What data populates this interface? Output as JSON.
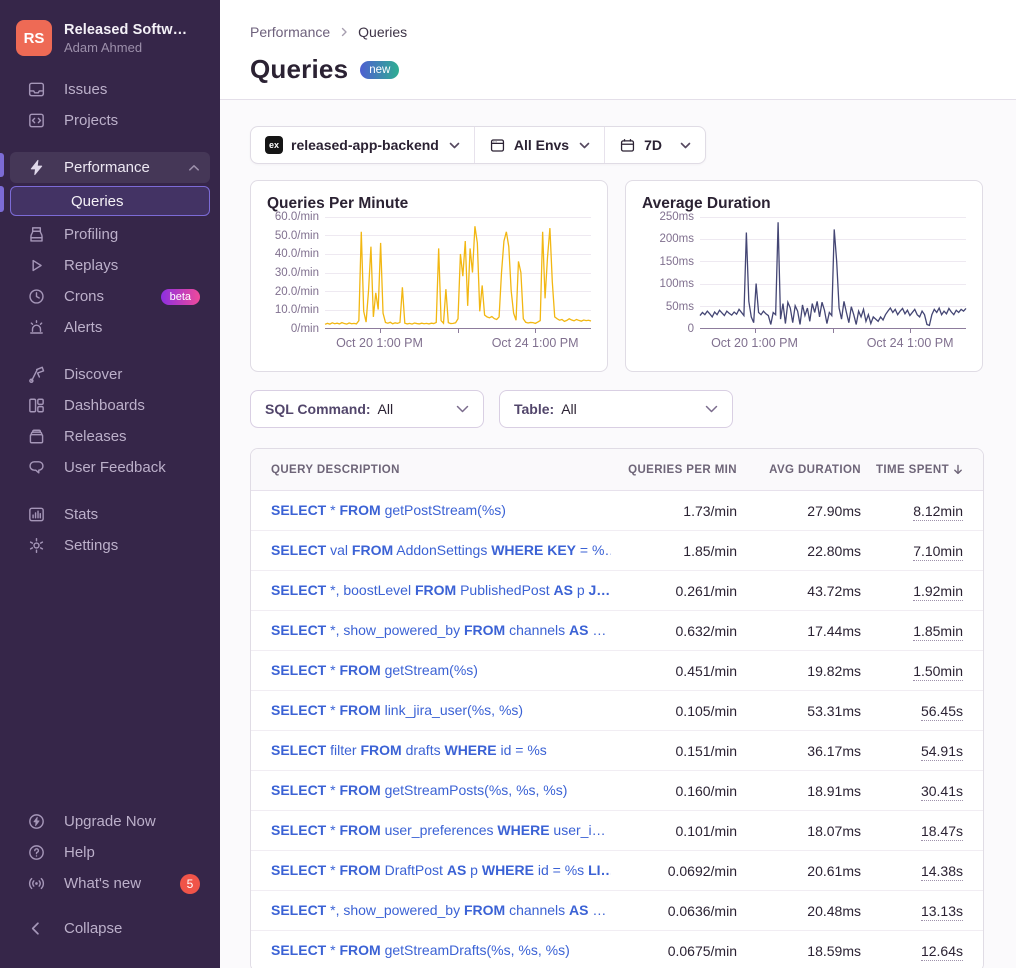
{
  "org": {
    "initials": "RS",
    "name": "Released Softw…",
    "user": "Adam Ahmed"
  },
  "sidebar": {
    "sections": [
      {
        "items": [
          {
            "label": "Issues",
            "icon": "issues"
          },
          {
            "label": "Projects",
            "icon": "projects"
          }
        ]
      },
      {
        "items": [
          {
            "label": "Performance",
            "icon": "performance",
            "state": "active",
            "chevron": "up"
          },
          {
            "label": "Queries",
            "state": "selected"
          },
          {
            "label": "Profiling",
            "icon": "profiling"
          },
          {
            "label": "Replays",
            "icon": "replays"
          },
          {
            "label": "Crons",
            "icon": "crons",
            "badge": "beta"
          },
          {
            "label": "Alerts",
            "icon": "alerts"
          }
        ]
      },
      {
        "items": [
          {
            "label": "Discover",
            "icon": "discover"
          },
          {
            "label": "Dashboards",
            "icon": "dashboards"
          },
          {
            "label": "Releases",
            "icon": "releases"
          },
          {
            "label": "User Feedback",
            "icon": "user-feedback"
          }
        ]
      },
      {
        "items": [
          {
            "label": "Stats",
            "icon": "stats"
          },
          {
            "label": "Settings",
            "icon": "settings"
          }
        ]
      }
    ],
    "footer": [
      {
        "label": "Upgrade Now",
        "icon": "upgrade"
      },
      {
        "label": "Help",
        "icon": "help"
      },
      {
        "label": "What's new",
        "icon": "whats-new",
        "count": "5"
      }
    ],
    "collapse_label": "Collapse"
  },
  "breadcrumb": {
    "parent": "Performance",
    "current": "Queries"
  },
  "page": {
    "title": "Queries",
    "badge": "new"
  },
  "filters": {
    "project": {
      "icon": "ex",
      "value": "released-app-backend"
    },
    "env": {
      "value": "All Envs"
    },
    "date": {
      "value": "7D"
    },
    "sql_command": {
      "label": "SQL Command:",
      "value": "All"
    },
    "table": {
      "label": "Table:",
      "value": "All"
    }
  },
  "chart_data": [
    {
      "type": "line",
      "title": "Queries Per Minute",
      "color": "#f2b712",
      "ylabel": "queries per minute",
      "ylim": [
        0,
        60
      ],
      "yticks": [
        "60.0/min",
        "50.0/min",
        "40.0/min",
        "30.0/min",
        "20.0/min",
        "10.0/min",
        "0/min"
      ],
      "xticks": [
        "Oct 20 1:00 PM",
        "Oct 24 1:00 PM"
      ],
      "xtick_pos": [
        20.5,
        79
      ],
      "axis_tick_pos": [
        20.5,
        50,
        79
      ],
      "values": [
        2,
        2.5,
        2.1,
        2.8,
        2.3,
        2.6,
        2.2,
        2.9,
        2.4,
        2.1,
        2.7,
        2.3,
        2.5,
        2.2,
        4,
        52,
        9,
        3.2,
        20,
        44,
        6,
        19,
        10,
        46,
        8,
        3,
        2.6,
        3.1,
        2.3,
        2.8,
        2.5,
        3,
        22,
        2.6,
        2.2,
        2.5,
        2.1,
        2.7,
        2.4,
        2.2,
        2.6,
        2.3,
        2.5,
        2.2,
        2.6,
        2.4,
        3,
        43,
        4,
        2.6,
        21,
        2.9,
        2.4,
        2.5,
        2.8,
        5,
        40,
        28,
        47,
        12,
        43,
        30,
        55,
        46,
        9,
        23,
        7,
        6,
        5.5,
        6.2,
        5.1,
        4.6,
        6,
        30,
        47,
        52,
        44,
        20,
        8,
        4.2,
        36,
        30,
        5,
        3.1,
        2.7,
        3,
        2.9,
        2.5,
        3.2,
        4,
        52,
        16,
        38,
        54,
        25,
        6,
        5,
        4.2,
        4.6,
        3.6,
        4.1,
        5,
        4.3,
        3.9,
        4.6,
        4.1,
        3.7,
        4.3,
        4,
        4.2,
        3.8
      ]
    },
    {
      "type": "line",
      "title": "Average Duration",
      "color": "#444674",
      "ylabel": "avg duration (ms)",
      "ylim": [
        0,
        250
      ],
      "yticks": [
        "250ms",
        "200ms",
        "150ms",
        "100ms",
        "50ms",
        "0"
      ],
      "xticks": [
        "Oct 20 1:00 PM",
        "Oct 24 1:00 PM"
      ],
      "xtick_pos": [
        20.5,
        79
      ],
      "axis_tick_pos": [
        20.5,
        50,
        79
      ],
      "values": [
        28,
        35,
        30,
        38,
        32,
        25,
        36,
        30,
        40,
        34,
        28,
        38,
        33,
        29,
        36,
        31,
        42,
        35,
        28,
        215,
        60,
        25,
        12,
        100,
        35,
        30,
        38,
        32,
        28,
        8,
        35,
        30,
        238,
        20,
        55,
        10,
        58,
        45,
        12,
        50,
        38,
        8,
        52,
        28,
        45,
        15,
        55,
        35,
        60,
        25,
        58,
        40,
        10,
        35,
        28,
        222,
        150,
        45,
        20,
        60,
        35,
        12,
        48,
        30,
        8,
        38,
        25,
        42,
        15,
        30,
        10,
        25,
        20,
        15,
        25,
        18,
        30,
        38,
        45,
        35,
        42,
        30,
        38,
        44,
        32,
        40,
        28,
        35,
        42,
        30,
        25,
        38,
        30,
        8,
        6,
        30,
        42,
        35,
        45,
        30,
        38,
        32,
        44,
        36,
        30,
        40,
        35,
        42,
        38,
        44
      ]
    }
  ],
  "table": {
    "columns": [
      "Query Description",
      "Queries Per Min",
      "Avg Duration",
      "Time Spent"
    ],
    "sorted_column_index": 3,
    "sort_direction": "desc",
    "rows": [
      {
        "query": [
          [
            "SELECT",
            1
          ],
          [
            " * ",
            0
          ],
          [
            "FROM",
            1
          ],
          [
            " getPostStream(%s)",
            0
          ]
        ],
        "qpm": "1.73/min",
        "avg": "27.90ms",
        "time": "8.12min"
      },
      {
        "query": [
          [
            "SELECT",
            1
          ],
          [
            " val ",
            0
          ],
          [
            "FROM",
            1
          ],
          [
            " AddonSettings ",
            0
          ],
          [
            "WHERE",
            1
          ],
          [
            " ",
            0
          ],
          [
            "KEY",
            1
          ],
          [
            " = %…",
            0
          ]
        ],
        "qpm": "1.85/min",
        "avg": "22.80ms",
        "time": "7.10min"
      },
      {
        "query": [
          [
            "SELECT",
            1
          ],
          [
            " *, boostLevel ",
            0
          ],
          [
            "FROM",
            1
          ],
          [
            " PublishedPost ",
            0
          ],
          [
            "AS",
            1
          ],
          [
            " p ",
            0
          ],
          [
            "J…",
            1
          ]
        ],
        "qpm": "0.261/min",
        "avg": "43.72ms",
        "time": "1.92min"
      },
      {
        "query": [
          [
            "SELECT",
            1
          ],
          [
            " *, show_powered_by ",
            0
          ],
          [
            "FROM",
            1
          ],
          [
            " channels ",
            0
          ],
          [
            "AS",
            1
          ],
          [
            " …",
            0
          ]
        ],
        "qpm": "0.632/min",
        "avg": "17.44ms",
        "time": "1.85min"
      },
      {
        "query": [
          [
            "SELECT",
            1
          ],
          [
            " * ",
            0
          ],
          [
            "FROM",
            1
          ],
          [
            " getStream(%s)",
            0
          ]
        ],
        "qpm": "0.451/min",
        "avg": "19.82ms",
        "time": "1.50min"
      },
      {
        "query": [
          [
            "SELECT",
            1
          ],
          [
            " * ",
            0
          ],
          [
            "FROM",
            1
          ],
          [
            " link_jira_user(%s, %s)",
            0
          ]
        ],
        "qpm": "0.105/min",
        "avg": "53.31ms",
        "time": "56.45s"
      },
      {
        "query": [
          [
            "SELECT",
            1
          ],
          [
            " filter ",
            0
          ],
          [
            "FROM",
            1
          ],
          [
            " drafts ",
            0
          ],
          [
            "WHERE",
            1
          ],
          [
            " id = %s",
            0
          ]
        ],
        "qpm": "0.151/min",
        "avg": "36.17ms",
        "time": "54.91s"
      },
      {
        "query": [
          [
            "SELECT",
            1
          ],
          [
            " * ",
            0
          ],
          [
            "FROM",
            1
          ],
          [
            " getStreamPosts(%s, %s, %s)",
            0
          ]
        ],
        "qpm": "0.160/min",
        "avg": "18.91ms",
        "time": "30.41s"
      },
      {
        "query": [
          [
            "SELECT",
            1
          ],
          [
            " * ",
            0
          ],
          [
            "FROM",
            1
          ],
          [
            " user_preferences ",
            0
          ],
          [
            "WHERE",
            1
          ],
          [
            " user_i…",
            0
          ]
        ],
        "qpm": "0.101/min",
        "avg": "18.07ms",
        "time": "18.47s"
      },
      {
        "query": [
          [
            "SELECT",
            1
          ],
          [
            " * ",
            0
          ],
          [
            "FROM",
            1
          ],
          [
            " DraftPost ",
            0
          ],
          [
            "AS",
            1
          ],
          [
            " p ",
            0
          ],
          [
            "WHERE",
            1
          ],
          [
            " id = %s ",
            0
          ],
          [
            "LI…",
            1
          ]
        ],
        "qpm": "0.0692/min",
        "avg": "20.61ms",
        "time": "14.38s"
      },
      {
        "query": [
          [
            "SELECT",
            1
          ],
          [
            " *, show_powered_by ",
            0
          ],
          [
            "FROM",
            1
          ],
          [
            " channels ",
            0
          ],
          [
            "AS",
            1
          ],
          [
            " …",
            0
          ]
        ],
        "qpm": "0.0636/min",
        "avg": "20.48ms",
        "time": "13.13s"
      },
      {
        "query": [
          [
            "SELECT",
            1
          ],
          [
            " * ",
            0
          ],
          [
            "FROM",
            1
          ],
          [
            " getStreamDrafts(%s, %s, %s)",
            0
          ]
        ],
        "qpm": "0.0675/min",
        "avg": "18.59ms",
        "time": "12.64s"
      }
    ]
  }
}
